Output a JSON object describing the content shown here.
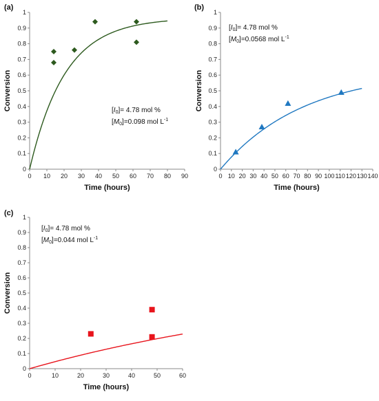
{
  "chart_data": [
    {
      "type": "scatter",
      "panel_label": "(a)",
      "xlabel": "Time (hours)",
      "ylabel": "Conversion",
      "xlim": [
        0,
        90
      ],
      "ylim": [
        0,
        1
      ],
      "xticks": [
        "0",
        "10",
        "20",
        "30",
        "40",
        "50",
        "60",
        "70",
        "80",
        "90"
      ],
      "yticks": [
        "0",
        "0.1",
        "0.2",
        "0.3",
        "0.4",
        "0.5",
        "0.6",
        "0.7",
        "0.8",
        "0.9",
        "1"
      ],
      "marker": "diamond",
      "color": "#2d5a1e",
      "points": [
        {
          "x": 14,
          "y": 0.75
        },
        {
          "x": 14,
          "y": 0.68
        },
        {
          "x": 26,
          "y": 0.76
        },
        {
          "x": 38,
          "y": 0.94
        },
        {
          "x": 62,
          "y": 0.94
        },
        {
          "x": 62,
          "y": 0.81
        }
      ],
      "fit_k": 0.0487,
      "fit_max": 0.965,
      "fit_xmax": 80,
      "annotation": {
        "line1": "[I0]= 4.78 mol %",
        "line2": "[M0]=0.098 mol L-1"
      }
    },
    {
      "type": "scatter",
      "panel_label": "(b)",
      "xlabel": "Time (hours)",
      "ylabel": "Conversion",
      "xlim": [
        0,
        140
      ],
      "ylim": [
        0,
        1
      ],
      "xticks": [
        "0",
        "10",
        "20",
        "30",
        "40",
        "50",
        "60",
        "70",
        "80",
        "90",
        "100",
        "110",
        "120",
        "130",
        "140"
      ],
      "yticks": [
        "0",
        "0.1",
        "0.2",
        "0.3",
        "0.4",
        "0.5",
        "0.6",
        "0.7",
        "0.8",
        "0.9",
        "1"
      ],
      "marker": "triangle",
      "color": "#1f78c1",
      "points": [
        {
          "x": 14,
          "y": 0.11
        },
        {
          "x": 38,
          "y": 0.27
        },
        {
          "x": 62,
          "y": 0.42
        },
        {
          "x": 111,
          "y": 0.49
        }
      ],
      "fit_k": 0.0131,
      "fit_max": 0.63,
      "fit_xmax": 130,
      "annotation": {
        "line1": "[I0]= 4.78 mol %",
        "line2": "[M0]=0.0568 mol L-1"
      }
    },
    {
      "type": "scatter",
      "panel_label": "(c)",
      "xlabel": "Time (hours)",
      "ylabel": "Conversion",
      "xlim": [
        0,
        60
      ],
      "ylim": [
        0,
        1
      ],
      "xticks": [
        "0",
        "10",
        "20",
        "30",
        "40",
        "50",
        "60"
      ],
      "yticks": [
        "0",
        "0.1",
        "0.2",
        "0.3",
        "0.4",
        "0.5",
        "0.6",
        "0.7",
        "0.8",
        "0.9",
        "1"
      ],
      "marker": "square",
      "color": "#e8141c",
      "points": [
        {
          "x": 24,
          "y": 0.23
        },
        {
          "x": 48,
          "y": 0.39
        },
        {
          "x": 48,
          "y": 0.21
        }
      ],
      "fit_k": 0.00818,
      "fit_max": 0.59,
      "fit_xmax": 60,
      "annotation": {
        "line1": "[I0]= 4.78 mol %",
        "line2": "[M0]=0.044 mol L-1"
      }
    }
  ]
}
